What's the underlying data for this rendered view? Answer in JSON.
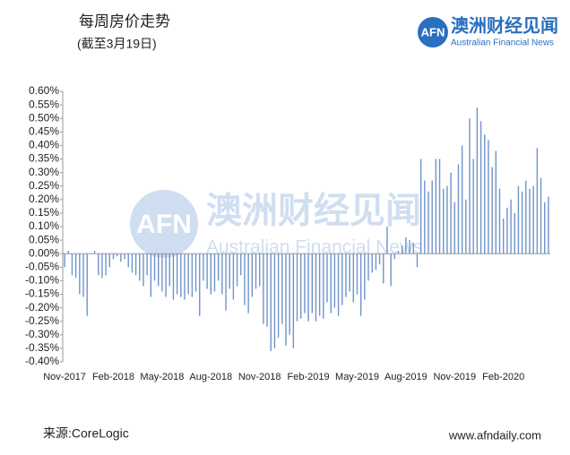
{
  "chart_data": {
    "type": "bar",
    "title": "每周房价走势",
    "subtitle": "(截至3月19日)",
    "source": "来源:CoreLogic",
    "website": "www.afndaily.com",
    "logo": {
      "mark": "AFN",
      "name": "澳洲财经见闻",
      "english": "Australian Financial News"
    },
    "color": "#6f93c9",
    "categories": [
      "Nov-2017",
      null,
      null,
      null,
      null,
      null,
      null,
      null,
      null,
      null,
      null,
      null,
      null,
      "Feb-2018",
      null,
      null,
      null,
      null,
      null,
      null,
      null,
      null,
      null,
      null,
      null,
      null,
      "May-2018",
      null,
      null,
      null,
      null,
      null,
      null,
      null,
      null,
      null,
      null,
      null,
      null,
      "Aug-2018",
      null,
      null,
      null,
      null,
      null,
      null,
      null,
      null,
      null,
      null,
      null,
      null,
      "Nov-2018",
      null,
      null,
      null,
      null,
      null,
      null,
      null,
      null,
      null,
      null,
      null,
      null,
      "Feb-2019",
      null,
      null,
      null,
      null,
      null,
      null,
      null,
      null,
      null,
      null,
      null,
      null,
      "May-2019",
      null,
      null,
      null,
      null,
      null,
      null,
      null,
      null,
      null,
      null,
      null,
      null,
      "Aug-2019",
      null,
      null,
      null,
      null,
      null,
      null,
      null,
      null,
      null,
      null,
      null,
      null,
      "Nov-2019",
      null,
      null,
      null,
      null,
      null,
      null,
      null,
      null,
      null,
      null,
      null,
      null,
      "Feb-2020",
      null,
      null,
      null,
      null,
      null,
      null,
      null,
      null,
      null,
      null,
      null,
      null
    ],
    "values": [
      -0.05,
      0.01,
      -0.08,
      -0.09,
      -0.15,
      -0.16,
      -0.23,
      0,
      0.01,
      -0.08,
      -0.09,
      -0.08,
      -0.05,
      -0.02,
      -0.01,
      -0.03,
      -0.02,
      -0.05,
      -0.07,
      -0.08,
      -0.1,
      -0.12,
      -0.08,
      -0.16,
      -0.1,
      -0.12,
      -0.14,
      -0.16,
      -0.12,
      -0.17,
      -0.15,
      -0.16,
      -0.17,
      -0.15,
      -0.16,
      -0.14,
      -0.23,
      -0.1,
      -0.13,
      -0.15,
      -0.14,
      -0.1,
      -0.15,
      -0.21,
      -0.13,
      -0.17,
      -0.12,
      -0.08,
      -0.19,
      -0.22,
      -0.16,
      -0.13,
      -0.12,
      -0.26,
      -0.27,
      -0.36,
      -0.35,
      -0.31,
      -0.26,
      -0.34,
      -0.3,
      -0.35,
      -0.25,
      -0.24,
      -0.22,
      -0.25,
      -0.22,
      -0.25,
      -0.23,
      -0.24,
      -0.18,
      -0.22,
      -0.2,
      -0.23,
      -0.19,
      -0.16,
      -0.14,
      -0.18,
      -0.15,
      -0.23,
      -0.17,
      -0.1,
      -0.07,
      -0.06,
      -0.04,
      -0.11,
      0.1,
      -0.12,
      -0.02,
      0.01,
      0.03,
      0.06,
      0.05,
      0.04,
      -0.05,
      0.35,
      0.27,
      0.23,
      0.27,
      0.35,
      0.35,
      0.24,
      0.25,
      0.3,
      0.19,
      0.33,
      0.4,
      0.2,
      0.5,
      0.35,
      0.54,
      0.49,
      0.44,
      0.42,
      0.32,
      0.38,
      0.24,
      0.13,
      0.17,
      0.2,
      0.15,
      0.25,
      0.23,
      0.27,
      0.24,
      0.25,
      0.39,
      0.28,
      0.19,
      0.21
    ],
    "ylim": [
      -0.4,
      0.6
    ],
    "yticks": [
      {
        "value": 0.6,
        "label": "0.60%"
      },
      {
        "value": 0.55,
        "label": "0.55%"
      },
      {
        "value": 0.5,
        "label": "0.50%"
      },
      {
        "value": 0.45,
        "label": "0.45%"
      },
      {
        "value": 0.4,
        "label": "0.40%"
      },
      {
        "value": 0.35,
        "label": "0.35%"
      },
      {
        "value": 0.3,
        "label": "0.30%"
      },
      {
        "value": 0.25,
        "label": "0.25%"
      },
      {
        "value": 0.2,
        "label": "0.20%"
      },
      {
        "value": 0.15,
        "label": "0.15%"
      },
      {
        "value": 0.1,
        "label": "0.10%"
      },
      {
        "value": 0.05,
        "label": "0.05%"
      },
      {
        "value": 0,
        "label": "0.00%"
      },
      {
        "value": -0.05,
        "label": "-0.05%"
      },
      {
        "value": -0.1,
        "label": "-0.10%"
      },
      {
        "value": -0.15,
        "label": "-0.15%"
      },
      {
        "value": -0.2,
        "label": "-0.20%"
      },
      {
        "value": -0.25,
        "label": "-0.25%"
      },
      {
        "value": -0.3,
        "label": "-0.30%"
      },
      {
        "value": -0.35,
        "label": "-0.35%"
      },
      {
        "value": -0.4,
        "label": "-0.40%"
      }
    ]
  }
}
